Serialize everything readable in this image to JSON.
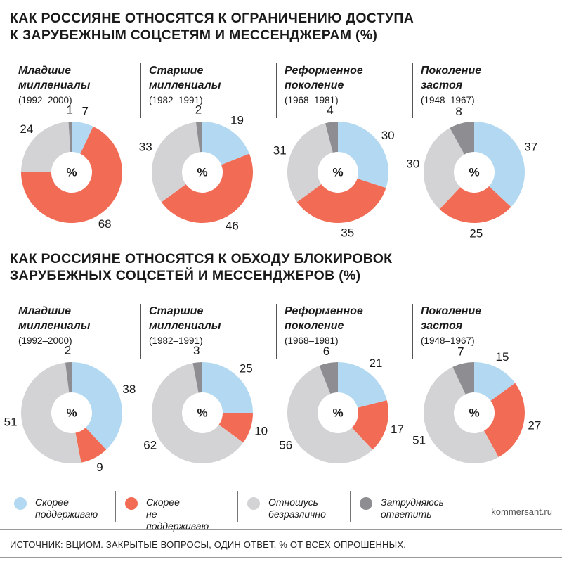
{
  "title1": [
    "КАК РОССИЯНЕ ОТНОСЯТСЯ К ОГРАНИЧЕНИЮ ДОСТУПА",
    "К ЗАРУБЕЖНЫМ СОЦСЕТЯМ И МЕССЕНДЖЕРАМ (%)"
  ],
  "title2": [
    "КАК РОССИЯНЕ ОТНОСЯТСЯ К ОБХОДУ БЛОКИРОВОК",
    "ЗАРУБЕЖНЫХ СОЦСЕТЕЙ И МЕССЕНДЖЕРОВ (%)"
  ],
  "generations": [
    {
      "name": [
        "Младшие",
        "миллениалы"
      ],
      "years": "(1992–2000)"
    },
    {
      "name": [
        "Старшие",
        "миллениалы"
      ],
      "years": "(1982–1991)"
    },
    {
      "name": [
        "Реформенное",
        "поколение"
      ],
      "years": "(1968–1981)"
    },
    {
      "name": [
        "Поколение",
        "застоя"
      ],
      "years": "(1948–1967)"
    }
  ],
  "center_label": "%",
  "legend": [
    {
      "lines": [
        "Скорее",
        "поддерживаю"
      ],
      "color": "#b2d9f1",
      "icon": "light-blue-dot"
    },
    {
      "lines": [
        "Скорее",
        "не поддерживаю"
      ],
      "color": "#f26b55",
      "icon": "red-dot"
    },
    {
      "lines": [
        "Отношусь",
        "безразлично"
      ],
      "color": "#d3d3d6",
      "icon": "light-gray-dot"
    },
    {
      "lines": [
        "Затрудняюсь",
        "ответить"
      ],
      "color": "#8e8e92",
      "icon": "dark-gray-dot"
    }
  ],
  "credit": "kommersant.ru",
  "source": "ИСТОЧНИК: ВЦИОМ. ЗАКРЫТЫЕ ВОПРОСЫ, ОДИН ОТВЕТ, % ОТ ВСЕХ ОПРОШЕННЫХ.",
  "chart_data": [
    {
      "type": "pie",
      "title": "КАК РОССИЯНЕ ОТНОСЯТСЯ К ОГРАНИЧЕНИЮ ДОСТУПА К ЗАРУБЕЖНЫМ СОЦСЕТЯМ И МЕССЕНДЖЕРАМ (%)",
      "categories": [
        "Скорее поддерживаю",
        "Скорее не поддерживаю",
        "Отношусь безразлично",
        "Затрудняюсь ответить"
      ],
      "colors": [
        "#b2d9f1",
        "#f26b55",
        "#d3d3d6",
        "#8e8e92"
      ],
      "series": [
        {
          "name": "Младшие миллениалы",
          "values": [
            7,
            68,
            24,
            1
          ]
        },
        {
          "name": "Старшие миллениалы",
          "values": [
            19,
            46,
            33,
            2
          ]
        },
        {
          "name": "Реформенное поколение",
          "values": [
            30,
            35,
            31,
            4
          ]
        },
        {
          "name": "Поколение застоя",
          "values": [
            37,
            25,
            30,
            8
          ]
        }
      ]
    },
    {
      "type": "pie",
      "title": "КАК РОССИЯНЕ ОТНОСЯТСЯ К ОБХОДУ БЛОКИРОВОК ЗАРУБЕЖНЫХ СОЦСЕТЕЙ И МЕССЕНДЖЕРОВ (%)",
      "categories": [
        "Скорее поддерживаю",
        "Скорее не поддерживаю",
        "Отношусь безразлично",
        "Затрудняюсь ответить"
      ],
      "colors": [
        "#b2d9f1",
        "#f26b55",
        "#d3d3d6",
        "#8e8e92"
      ],
      "series": [
        {
          "name": "Младшие миллениалы",
          "values": [
            38,
            9,
            51,
            2
          ]
        },
        {
          "name": "Старшие миллениалы",
          "values": [
            25,
            10,
            62,
            3
          ]
        },
        {
          "name": "Реформенное поколение",
          "values": [
            21,
            17,
            56,
            6
          ]
        },
        {
          "name": "Поколение застоя",
          "values": [
            15,
            27,
            51,
            7
          ]
        }
      ]
    }
  ]
}
